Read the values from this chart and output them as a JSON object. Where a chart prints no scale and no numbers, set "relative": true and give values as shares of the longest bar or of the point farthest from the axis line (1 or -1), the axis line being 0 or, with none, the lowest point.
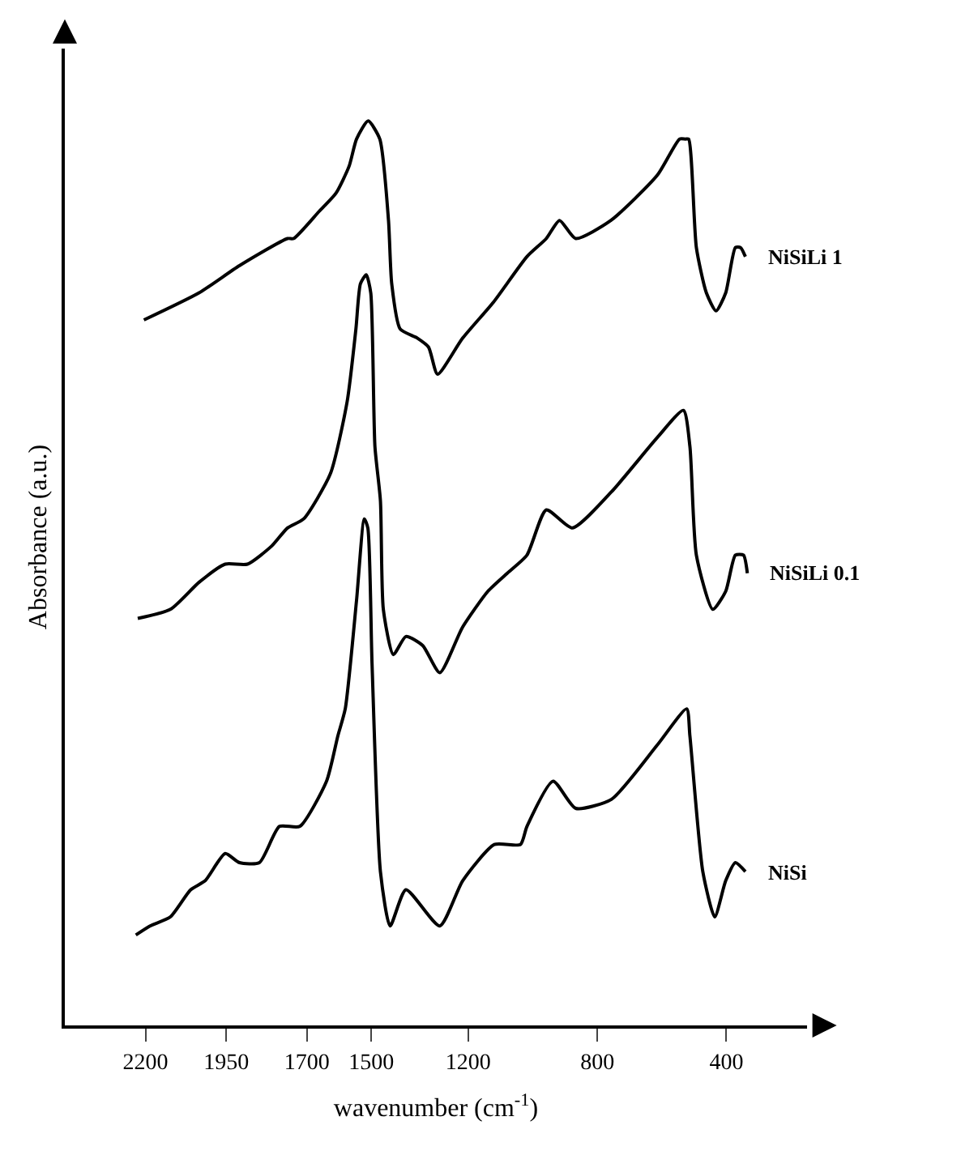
{
  "chart_data": {
    "type": "line",
    "relative": true,
    "xlabel": "wavenumber (cm$^{-1}$)",
    "ylabel": "Absorbance (a.u.)",
    "xlim": [
      2450,
      150
    ],
    "xticks": [
      2200,
      1950,
      1700,
      1500,
      1200,
      800,
      400
    ],
    "legend": false,
    "marker": "none",
    "line_style": "solid",
    "series": [
      {
        "name": "NiSiLi 1",
        "color": "#000000",
        "x": [
          2205,
          2034,
          1909,
          1760,
          1741,
          1662,
          1610,
          1569,
          1546,
          1510,
          1474,
          1447,
          1437,
          1411,
          1358,
          1323,
          1295,
          1217,
          1121,
          1018,
          958,
          917,
          867,
          758,
          614,
          545,
          527,
          517,
          493,
          462,
          432,
          402,
          372,
          356,
          341
        ],
        "values": [
          0.78,
          0.81,
          0.84,
          0.87,
          0.87,
          0.9,
          0.92,
          0.95,
          0.98,
          1.0,
          0.98,
          0.89,
          0.82,
          0.77,
          0.76,
          0.75,
          0.72,
          0.76,
          0.8,
          0.85,
          0.87,
          0.89,
          0.87,
          0.89,
          0.94,
          0.98,
          0.98,
          0.98,
          0.86,
          0.81,
          0.79,
          0.81,
          0.86,
          0.86,
          0.85
        ]
      },
      {
        "name": "NiSiLi 0.1",
        "color": "#000000",
        "x": [
          2224,
          2123,
          2034,
          1953,
          1884,
          1809,
          1760,
          1710,
          1627,
          1575,
          1548,
          1534,
          1516,
          1502,
          1489,
          1472,
          1463,
          1432,
          1393,
          1341,
          1288,
          1218,
          1139,
          1079,
          1018,
          958,
          877,
          756,
          614,
          533,
          513,
          493,
          442,
          402,
          372,
          347,
          335
        ],
        "values": [
          0.45,
          0.46,
          0.49,
          0.51,
          0.51,
          0.53,
          0.55,
          0.56,
          0.61,
          0.69,
          0.77,
          0.82,
          0.83,
          0.81,
          0.64,
          0.58,
          0.46,
          0.41,
          0.43,
          0.42,
          0.39,
          0.44,
          0.48,
          0.5,
          0.52,
          0.57,
          0.55,
          0.59,
          0.65,
          0.68,
          0.64,
          0.52,
          0.46,
          0.48,
          0.52,
          0.52,
          0.5
        ]
      },
      {
        "name": "NiSi",
        "color": "#000000",
        "x": [
          2230,
          2186,
          2123,
          2060,
          2015,
          1953,
          1909,
          1847,
          1785,
          1722,
          1639,
          1604,
          1581,
          1546,
          1522,
          1511,
          1498,
          1472,
          1442,
          1393,
          1288,
          1217,
          1119,
          1038,
          1018,
          937,
          867,
          756,
          614,
          523,
          513,
          473,
          436,
          402,
          372,
          341
        ],
        "values": [
          0.1,
          0.11,
          0.12,
          0.15,
          0.16,
          0.19,
          0.18,
          0.18,
          0.22,
          0.22,
          0.27,
          0.32,
          0.35,
          0.47,
          0.56,
          0.55,
          0.4,
          0.17,
          0.11,
          0.15,
          0.11,
          0.16,
          0.2,
          0.2,
          0.22,
          0.27,
          0.24,
          0.25,
          0.31,
          0.35,
          0.32,
          0.17,
          0.12,
          0.16,
          0.18,
          0.17
        ]
      }
    ]
  }
}
